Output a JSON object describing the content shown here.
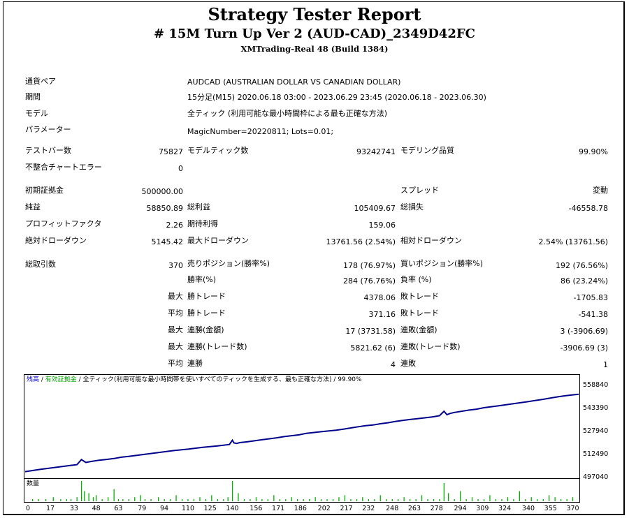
{
  "header": {
    "title": "Strategy Tester Report",
    "subtitle": "# 15M Turn Up Ver 2 (AUD-CAD)_2349D42FC",
    "server": "XMTrading-Real 48 (Build 1384)"
  },
  "settings": [
    {
      "label": "通貨ペア",
      "value": "AUDCAD (AUSTRALIAN DOLLAR VS CANADIAN DOLLAR)"
    },
    {
      "label": "期間",
      "value": "15分足(M15) 2020.06.18 03:00 - 2023.06.29 23:45 (2020.06.18 - 2023.06.30)"
    },
    {
      "label": "モデル",
      "value": "全ティック (利用可能な最小時間枠による最も正確な方法)"
    },
    {
      "label": "パラメーター",
      "value": "MagicNumber=20220811; Lots=0.01;"
    }
  ],
  "stats": {
    "bars_label": "テストバー数",
    "bars_value": "75827",
    "ticks_label": "モデルティック数",
    "ticks_value": "93242741",
    "quality_label": "モデリング品質",
    "quality_value": "99.90%",
    "mismatch_label": "不整合チャートエラー",
    "mismatch_value": "0",
    "deposit_label": "初期証拠金",
    "deposit_value": "500000.00",
    "spread_label": "スプレッド",
    "spread_value": "変動",
    "net_label": "純益",
    "net_value": "58850.89",
    "gross_profit_label": "総利益",
    "gross_profit_value": "105409.67",
    "gross_loss_label": "総損失",
    "gross_loss_value": "-46558.78",
    "pf_label": "プロフィットファクタ",
    "pf_value": "2.26",
    "payoff_label": "期待利得",
    "payoff_value": "159.06",
    "abs_dd_label": "絶対ドローダウン",
    "abs_dd_value": "5145.42",
    "max_dd_label": "最大ドローダウン",
    "max_dd_value": "13761.56 (2.54%)",
    "rel_dd_label": "相対ドローダウン",
    "rel_dd_value": "2.54% (13761.56)",
    "trades_label": "総取引数",
    "trades_value": "370",
    "short_label": "売りポジション(勝率%)",
    "short_value": "178 (76.97%)",
    "long_label": "買いポジション(勝率%)",
    "long_value": "192 (76.56%)",
    "win_label": "勝率(%)",
    "win_value": "284 (76.76%)",
    "loss_label": "負率 (%)",
    "loss_value": "86 (23.24%)",
    "max_prefix": "最大",
    "avg_prefix": "平均",
    "max_win_label": "勝トレード",
    "max_win_value": "4378.06",
    "max_loss_label": "敗トレード",
    "max_loss_value": "-1705.83",
    "avg_win_label": "勝トレード",
    "avg_win_value": "371.16",
    "avg_loss_label": "敗トレード",
    "avg_loss_value": "-541.38",
    "cons_wins_amt_label": "連勝(金額)",
    "cons_wins_amt_value": "17 (3731.58)",
    "cons_losses_amt_label": "連敗(金額)",
    "cons_losses_amt_value": "3 (-3906.69)",
    "cons_profit_label": "連勝(トレード数)",
    "cons_profit_value": "5821.62 (6)",
    "cons_loss_label": "連敗(トレード数)",
    "cons_loss_value": "-3906.69 (3)",
    "avg_cons_win_label": "連勝",
    "avg_cons_win_value": "4",
    "avg_cons_loss_label": "連敗",
    "avg_cons_loss_value": "1"
  },
  "chart": {
    "legend_balance": "残高",
    "legend_sep": " / ",
    "legend_equity": "有効証拠金",
    "legend_rest": " / 全ティック(利用可能な最小時間帯を使いすべてのティックを生成する、最も正確な方法) / 99.90%",
    "volume_label": "数量",
    "balance_color": "#00008b",
    "volume_color": "#00b000"
  },
  "chart_data": {
    "type": "line",
    "y_ticks": [
      "558840",
      "543390",
      "527940",
      "512490",
      "497040"
    ],
    "y_tick_values": [
      558840,
      543390,
      527940,
      512490,
      497040
    ],
    "x_ticks": [
      "0",
      "17",
      "33",
      "48",
      "63",
      "79",
      "94",
      "110",
      "125",
      "140",
      "156",
      "171",
      "186",
      "202",
      "217",
      "232",
      "248",
      "263",
      "278",
      "294",
      "309",
      "324",
      "340",
      "355",
      "370"
    ],
    "ylim": [
      497040,
      558840
    ],
    "xlim": [
      0,
      374
    ],
    "series": [
      {
        "x": [
          0,
          10,
          20,
          30,
          35,
          38,
          41,
          45,
          50,
          55,
          60,
          65,
          70,
          80,
          90,
          100,
          110,
          120,
          130,
          138,
          140,
          141,
          143,
          145,
          150,
          160,
          170,
          175,
          185,
          190,
          200,
          210,
          215,
          220,
          225,
          230,
          235,
          240,
          245,
          250,
          255,
          260,
          265,
          270,
          275,
          280,
          283,
          285,
          287,
          290,
          300,
          305,
          310,
          320,
          330,
          340,
          350,
          355,
          360,
          365,
          370,
          374
        ],
        "y": [
          500500,
          502000,
          503300,
          504600,
          505200,
          508600,
          506700,
          507400,
          508200,
          508700,
          509300,
          510200,
          510700,
          512000,
          513300,
          514600,
          515600,
          516800,
          517800,
          518700,
          521600,
          519800,
          519400,
          520000,
          520500,
          521900,
          523200,
          524000,
          525200,
          526200,
          527300,
          528300,
          529000,
          529800,
          530600,
          531300,
          531800,
          532600,
          533300,
          534100,
          534800,
          535500,
          536000,
          536600,
          537200,
          538000,
          541000,
          538700,
          539500,
          540200,
          541800,
          542400,
          543400,
          544700,
          546100,
          547500,
          549000,
          549900,
          550700,
          551400,
          552000,
          552400
        ]
      }
    ],
    "volume": {
      "x": [
        5,
        9,
        14,
        19,
        24,
        28,
        31,
        35,
        38,
        40,
        43,
        46,
        48,
        52,
        56,
        60,
        63,
        66,
        70,
        74,
        78,
        81,
        85,
        90,
        94,
        98,
        102,
        106,
        110,
        114,
        118,
        122,
        126,
        130,
        134,
        137,
        140,
        144,
        148,
        152,
        156,
        160,
        164,
        168,
        172,
        176,
        180,
        184,
        188,
        192,
        196,
        200,
        204,
        208,
        212,
        216,
        220,
        224,
        228,
        232,
        236,
        240,
        244,
        248,
        252,
        256,
        260,
        264,
        268,
        272,
        276,
        280,
        283,
        286,
        290,
        294,
        298,
        302,
        306,
        310,
        314,
        318,
        322,
        326,
        330,
        334,
        338,
        342,
        346,
        350,
        354,
        358,
        362,
        366,
        370
      ],
      "y": [
        1,
        1,
        1,
        2,
        1,
        1,
        1,
        2,
        10,
        5,
        4,
        2,
        3,
        1,
        2,
        6,
        1,
        1,
        1,
        2,
        3,
        1,
        1,
        2,
        1,
        1,
        3,
        1,
        1,
        1,
        2,
        1,
        3,
        1,
        1,
        2,
        10,
        4,
        1,
        1,
        2,
        1,
        1,
        3,
        1,
        1,
        2,
        1,
        1,
        1,
        2,
        1,
        1,
        1,
        2,
        3,
        1,
        1,
        2,
        1,
        1,
        3,
        1,
        1,
        1,
        2,
        1,
        1,
        3,
        1,
        1,
        1,
        9,
        4,
        1,
        5,
        1,
        2,
        1,
        1,
        3,
        1,
        1,
        2,
        1,
        5,
        1,
        2,
        1,
        1,
        3,
        2,
        1,
        1,
        2
      ],
      "ymax": 10
    }
  }
}
